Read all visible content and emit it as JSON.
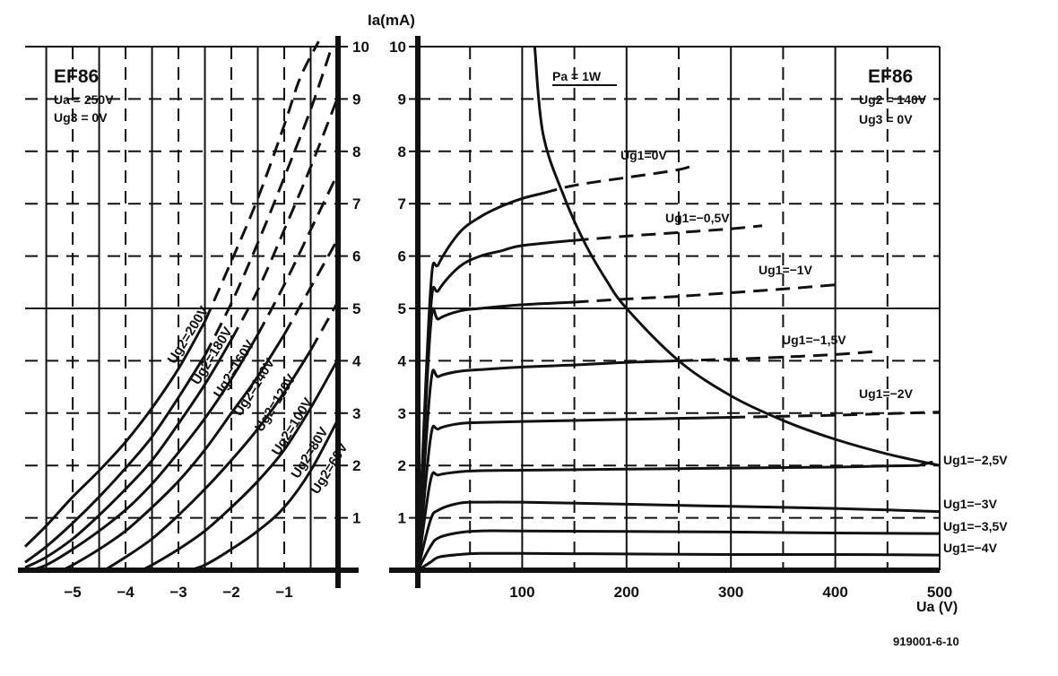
{
  "chart_data": [
    {
      "type": "line",
      "title": "EF86",
      "conditions": [
        "Ua = 250V",
        "Ug3 = 0V"
      ],
      "xlabel": "",
      "ylabel": "",
      "xlim": [
        -5.9,
        0
      ],
      "ylim": [
        0,
        10
      ],
      "xticks": [
        -5,
        -4,
        -3,
        -2,
        -1
      ],
      "xtick_labels": [
        "−5",
        "−4",
        "−3",
        "−2",
        "−1"
      ],
      "yticks": [
        1,
        2,
        3,
        4,
        5,
        6,
        7,
        8,
        9,
        10
      ],
      "grid": true,
      "note": "x axis: Ug1 (V), y axis: Ia (mA); dashed portions above 5 mA",
      "series": [
        {
          "name": "Ug2=200V",
          "x": [
            -5.9,
            -5.5,
            -5,
            -4.5,
            -4,
            -3.5,
            -3,
            -2.5,
            -2,
            -1.5,
            -1,
            -0.7,
            -0.35
          ],
          "y": [
            0.45,
            0.85,
            1.4,
            1.9,
            2.45,
            3.1,
            3.85,
            4.75,
            5.9,
            7.1,
            8.5,
            9.4,
            10.1
          ]
        },
        {
          "name": "Ug2=180V",
          "x": [
            -5.9,
            -5.5,
            -5,
            -4.5,
            -4,
            -3.5,
            -3,
            -2.5,
            -2,
            -1.5,
            -1,
            -0.5,
            -0.1
          ],
          "y": [
            0.15,
            0.45,
            0.9,
            1.4,
            1.95,
            2.55,
            3.3,
            4.1,
            5.1,
            6.25,
            7.5,
            8.8,
            10.0
          ]
        },
        {
          "name": "Ug2=160V",
          "x": [
            -5.9,
            -5.5,
            -5,
            -4.5,
            -4,
            -3.5,
            -3,
            -2.5,
            -2,
            -1.5,
            -1,
            -0.5,
            0
          ],
          "y": [
            0.05,
            0.25,
            0.6,
            1.05,
            1.55,
            2.1,
            2.8,
            3.55,
            4.4,
            5.35,
            6.5,
            7.7,
            9.0
          ]
        },
        {
          "name": "Ug2=140V",
          "x": [
            -5.8,
            -5.5,
            -5,
            -4.5,
            -4,
            -3.5,
            -3,
            -2.5,
            -2,
            -1.5,
            -1,
            -0.5,
            0
          ],
          "y": [
            0.0,
            0.1,
            0.4,
            0.75,
            1.15,
            1.65,
            2.25,
            2.9,
            3.65,
            4.5,
            5.45,
            6.5,
            7.55
          ]
        },
        {
          "name": "Ug2=120V",
          "x": [
            -5.2,
            -5,
            -4.5,
            -4,
            -3.5,
            -3,
            -2.5,
            -2,
            -1.5,
            -1,
            -0.5,
            0
          ],
          "y": [
            0.0,
            0.1,
            0.4,
            0.75,
            1.2,
            1.7,
            2.3,
            3.0,
            3.7,
            4.5,
            5.4,
            6.3
          ]
        },
        {
          "name": "Ug2=100V",
          "x": [
            -4.4,
            -4,
            -3.5,
            -3,
            -2.5,
            -2,
            -1.5,
            -1,
            -0.5,
            0
          ],
          "y": [
            0.0,
            0.25,
            0.6,
            1.05,
            1.55,
            2.1,
            2.7,
            3.4,
            4.2,
            5.1
          ]
        },
        {
          "name": "Ug2=80V",
          "x": [
            -3.7,
            -3.5,
            -3,
            -2.5,
            -2,
            -1.5,
            -1,
            -0.5,
            0
          ],
          "y": [
            0.0,
            0.1,
            0.4,
            0.75,
            1.2,
            1.7,
            2.3,
            3.1,
            4.0
          ]
        },
        {
          "name": "Ug2=60V",
          "x": [
            -2.8,
            -2.5,
            -2,
            -1.5,
            -1,
            -0.5,
            0
          ],
          "y": [
            0.0,
            0.1,
            0.4,
            0.75,
            1.2,
            1.9,
            2.85
          ]
        }
      ]
    },
    {
      "type": "line",
      "title": "EF86",
      "conditions": [
        "Ug2 = 140V",
        "Ug3 = 0V"
      ],
      "xlabel": "Ua (V)",
      "ylabel": "Ia(mA)",
      "xlim": [
        0,
        500
      ],
      "ylim": [
        0,
        10
      ],
      "xticks": [
        100,
        200,
        300,
        400,
        500
      ],
      "xtick_labels": [
        "100",
        "200",
        "300",
        "400",
        "500"
      ],
      "yticks": [
        1,
        2,
        3,
        4,
        5,
        6,
        7,
        8,
        9,
        10
      ],
      "grid": true,
      "note": "dashed portions beyond the Pa = 1W hyperbola",
      "series": [
        {
          "name": "Ug1=0V",
          "x": [
            0,
            12,
            20,
            40,
            60,
            80,
            100,
            120,
            150,
            200,
            250,
            265
          ],
          "y": [
            0,
            5.3,
            5.85,
            6.45,
            6.75,
            6.95,
            7.1,
            7.2,
            7.35,
            7.5,
            7.65,
            7.75
          ]
        },
        {
          "name": "Ug1=−0,5V",
          "x": [
            0,
            12,
            20,
            40,
            60,
            80,
            100,
            150,
            200,
            250,
            300,
            330
          ],
          "y": [
            0,
            4.9,
            5.35,
            5.8,
            6.0,
            6.1,
            6.2,
            6.3,
            6.38,
            6.45,
            6.52,
            6.58
          ]
        },
        {
          "name": "Ug1=−1V",
          "x": [
            0,
            12,
            20,
            40,
            60,
            100,
            150,
            200,
            250,
            300,
            350,
            400
          ],
          "y": [
            0,
            4.6,
            4.8,
            4.95,
            5.0,
            5.07,
            5.12,
            5.18,
            5.23,
            5.3,
            5.37,
            5.45
          ]
        },
        {
          "name": "Ug1=−1,5V",
          "x": [
            0,
            12,
            20,
            40,
            60,
            100,
            150,
            200,
            250,
            300,
            350,
            400,
            440
          ],
          "y": [
            0,
            3.5,
            3.7,
            3.8,
            3.83,
            3.88,
            3.92,
            3.97,
            4.0,
            4.03,
            4.07,
            4.12,
            4.18
          ]
        },
        {
          "name": "Ug1=−2V",
          "x": [
            0,
            12,
            20,
            40,
            60,
            100,
            150,
            200,
            250,
            300,
            350,
            400,
            450,
            500
          ],
          "y": [
            0,
            2.5,
            2.7,
            2.8,
            2.82,
            2.84,
            2.86,
            2.88,
            2.9,
            2.92,
            2.94,
            2.96,
            2.99,
            3.02
          ]
        },
        {
          "name": "Ug1=−2,5V",
          "x": [
            0,
            12,
            20,
            40,
            60,
            100,
            150,
            200,
            250,
            300,
            350,
            400,
            450,
            480,
            500
          ],
          "y": [
            0,
            1.7,
            1.82,
            1.88,
            1.9,
            1.91,
            1.92,
            1.93,
            1.94,
            1.95,
            1.96,
            1.97,
            1.99,
            2.0,
            2.1
          ]
        },
        {
          "name": "Ug1=−3V",
          "x": [
            0,
            12,
            20,
            40,
            60,
            100,
            150,
            200,
            250,
            300,
            350,
            400,
            450,
            500
          ],
          "y": [
            0,
            0.95,
            1.15,
            1.28,
            1.3,
            1.3,
            1.28,
            1.26,
            1.24,
            1.22,
            1.2,
            1.18,
            1.15,
            1.12
          ]
        },
        {
          "name": "Ug1=−3,5V",
          "x": [
            0,
            12,
            20,
            40,
            60,
            100,
            200,
            300,
            400,
            500
          ],
          "y": [
            0,
            0.45,
            0.62,
            0.72,
            0.75,
            0.75,
            0.74,
            0.73,
            0.71,
            0.7
          ]
        },
        {
          "name": "Ug1=−4V",
          "x": [
            0,
            12,
            20,
            40,
            60,
            100,
            200,
            300,
            400,
            500
          ],
          "y": [
            0,
            0.15,
            0.25,
            0.3,
            0.32,
            0.32,
            0.31,
            0.3,
            0.3,
            0.29
          ]
        },
        {
          "name": "Pa = 1W",
          "x": [
            112,
            120,
            140,
            160,
            180,
            200,
            250,
            300,
            350,
            400,
            450,
            500
          ],
          "y": [
            10.0,
            8.33,
            7.14,
            6.25,
            5.56,
            5.0,
            4.0,
            3.33,
            2.86,
            2.5,
            2.22,
            2.0
          ]
        }
      ]
    }
  ],
  "footer_ref": "919001-6-10"
}
